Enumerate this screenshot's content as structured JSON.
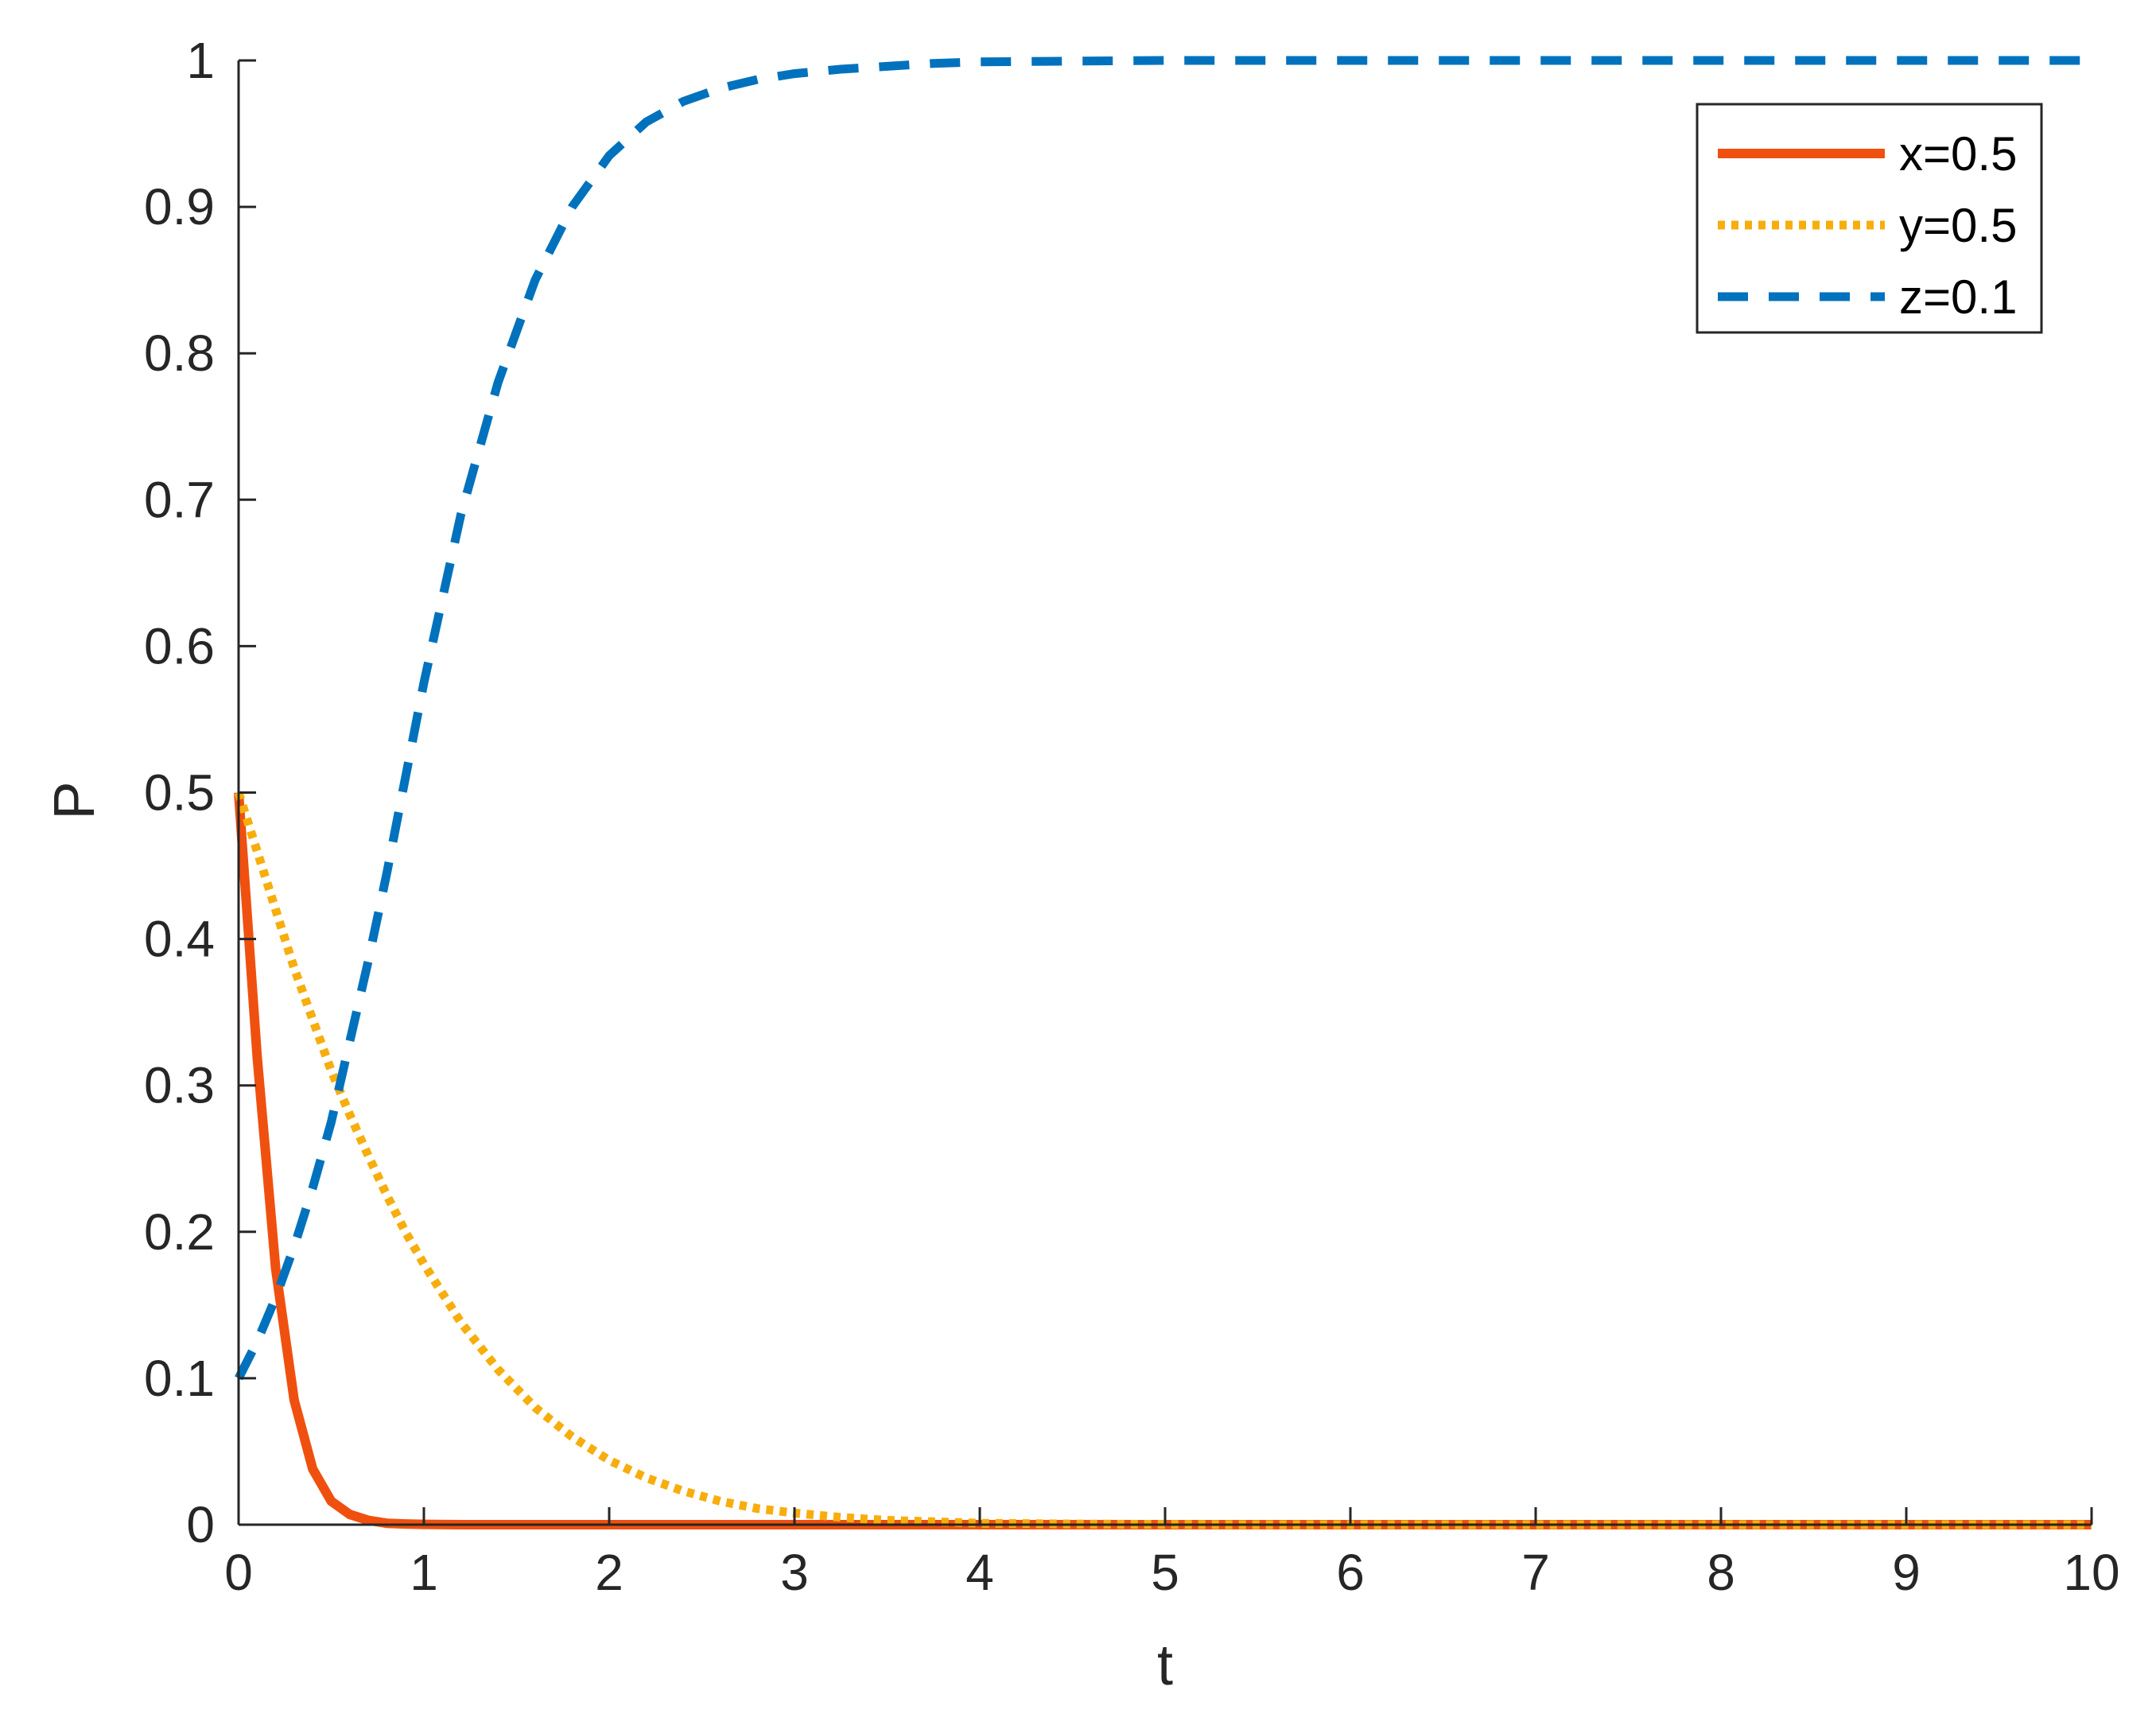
{
  "chart_data": {
    "type": "line",
    "xlabel": "t",
    "ylabel": "P",
    "xlim": [
      0,
      10
    ],
    "ylim": [
      0,
      1
    ],
    "xticks": [
      0,
      1,
      2,
      3,
      4,
      5,
      6,
      7,
      8,
      9,
      10
    ],
    "yticks": [
      0,
      0.1,
      0.2,
      0.3,
      0.4,
      0.5,
      0.6,
      0.7,
      0.8,
      0.9,
      1
    ],
    "grid": false,
    "legend_position": "top-right",
    "x": [
      0,
      0.1,
      0.2,
      0.3,
      0.4,
      0.5,
      0.6,
      0.7,
      0.8,
      0.9,
      1.0,
      1.2,
      1.4,
      1.6,
      1.8,
      2.0,
      2.2,
      2.4,
      2.6,
      2.8,
      3.0,
      3.25,
      3.5,
      3.75,
      4.0,
      4.5,
      5.0,
      5.5,
      6.0,
      7.0,
      8.0,
      9.0,
      10.0
    ],
    "series": [
      {
        "name": "x=0.5",
        "color": "#F0500F",
        "style": "solid",
        "values": [
          0.5,
          0.32,
          0.175,
          0.085,
          0.038,
          0.016,
          0.007,
          0.003,
          0.001,
          0.0005,
          0.0002,
          0,
          0,
          0,
          0,
          0,
          0,
          0,
          0,
          0,
          0,
          0,
          0,
          0,
          0,
          0,
          0,
          0,
          0,
          0,
          0,
          0,
          0
        ]
      },
      {
        "name": "y=0.5",
        "color": "#F7AE0C",
        "style": "dotted",
        "values": [
          0.5,
          0.46,
          0.42,
          0.38,
          0.345,
          0.31,
          0.28,
          0.252,
          0.225,
          0.2,
          0.178,
          0.138,
          0.106,
          0.08,
          0.06,
          0.044,
          0.032,
          0.023,
          0.016,
          0.011,
          0.008,
          0.005,
          0.003,
          0.002,
          0.001,
          0.0005,
          0.0002,
          0,
          0,
          0,
          0,
          0,
          0
        ]
      },
      {
        "name": "z=0.1",
        "color": "#0072BD",
        "style": "dashed",
        "values": [
          0.1,
          0.125,
          0.155,
          0.19,
          0.23,
          0.275,
          0.33,
          0.385,
          0.445,
          0.51,
          0.575,
          0.69,
          0.78,
          0.85,
          0.9,
          0.935,
          0.958,
          0.972,
          0.981,
          0.987,
          0.991,
          0.994,
          0.996,
          0.998,
          0.999,
          0.9995,
          1.0,
          1.0,
          1.0,
          1.0,
          1.0,
          1.0,
          1.0
        ]
      }
    ]
  }
}
